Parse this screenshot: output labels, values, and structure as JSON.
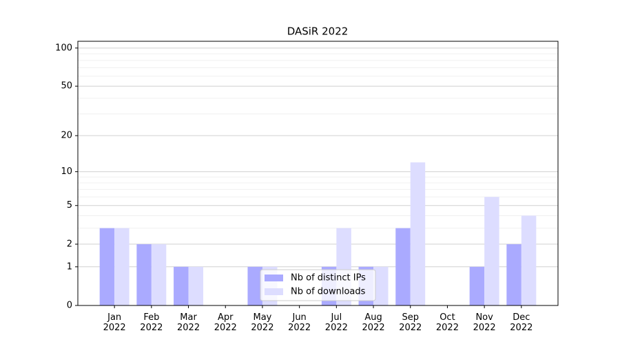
{
  "chart_data": {
    "type": "bar",
    "title": "DASiR 2022",
    "scale": "log1p",
    "categories": [
      "Jan\n2022",
      "Feb\n2022",
      "Mar\n2022",
      "Apr\n2022",
      "May\n2022",
      "Jun\n2022",
      "Jul\n2022",
      "Aug\n2022",
      "Sep\n2022",
      "Oct\n2022",
      "Nov\n2022",
      "Dec\n2022"
    ],
    "series": [
      {
        "name": "Nb of distinct IPs",
        "color": "#aaaaff",
        "values": [
          3,
          2,
          1,
          0,
          1,
          0,
          1,
          1,
          3,
          0,
          1,
          2
        ]
      },
      {
        "name": "Nb of downloads",
        "color": "#ddddff",
        "values": [
          3,
          2,
          1,
          0,
          1,
          0,
          3,
          1,
          12,
          0,
          6,
          4
        ]
      }
    ],
    "ylim": [
      0,
      113
    ],
    "yticks": [
      0,
      1,
      2,
      5,
      10,
      20,
      50,
      100
    ],
    "minor_yticks": [
      3,
      4,
      6,
      7,
      8,
      9,
      30,
      40,
      60,
      70,
      80,
      90
    ],
    "grid": true,
    "legend": "lower center"
  }
}
